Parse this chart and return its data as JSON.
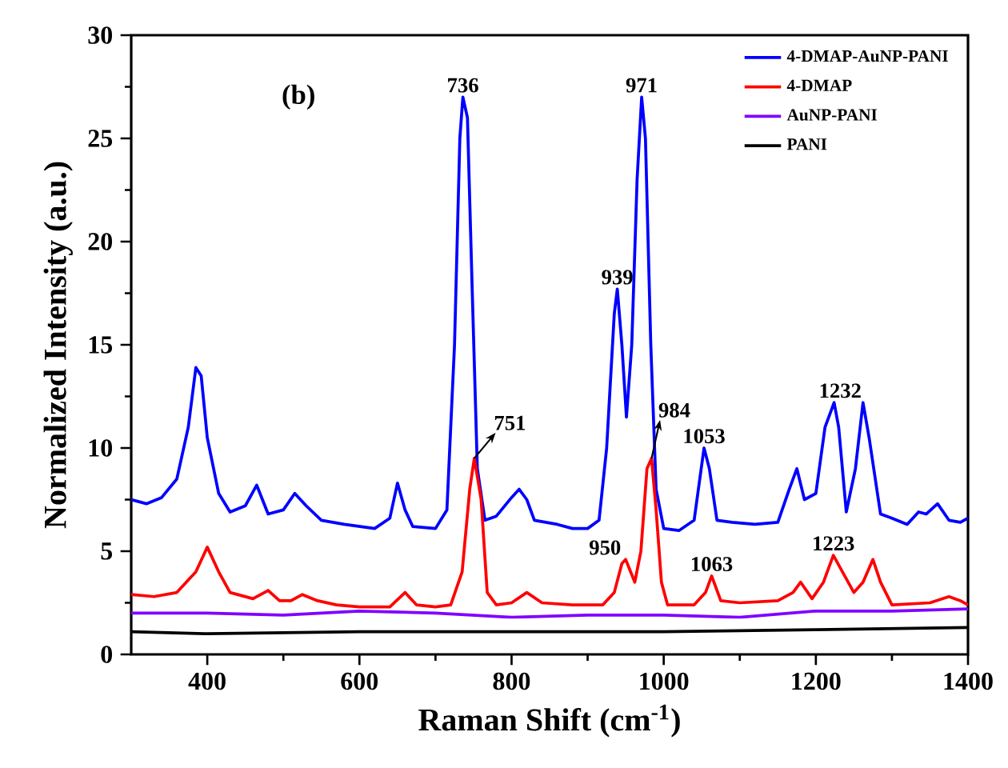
{
  "chart_data": {
    "type": "line",
    "xlabel": "Raman Shift (cm$^{-1}$)",
    "ylabel": "Normalized Intensity (a.u.)",
    "xlim": [
      300,
      1400
    ],
    "xticks": [
      400,
      600,
      800,
      1000,
      1200,
      1400
    ],
    "ylim": [
      0,
      30
    ],
    "yticks": [
      0,
      5,
      10,
      15,
      20,
      25,
      30
    ],
    "grid": false,
    "legend": "top right",
    "marker": "none",
    "line_style": "solid",
    "series": [
      {
        "name": "4-DMAP-AuNP-PANI",
        "color": "#0000ff",
        "x": [
          300,
          320,
          340,
          360,
          375,
          385,
          392,
          400,
          415,
          430,
          450,
          465,
          480,
          500,
          515,
          530,
          550,
          580,
          600,
          620,
          640,
          650,
          660,
          670,
          700,
          715,
          725,
          732,
          736,
          742,
          748,
          755,
          765,
          780,
          800,
          810,
          820,
          830,
          860,
          880,
          900,
          915,
          925,
          935,
          939,
          945,
          951,
          958,
          965,
          971,
          976,
          983,
          990,
          1000,
          1020,
          1040,
          1053,
          1060,
          1070,
          1090,
          1120,
          1150,
          1165,
          1175,
          1185,
          1200,
          1212,
          1224,
          1230,
          1240,
          1252,
          1262,
          1270,
          1285,
          1300,
          1320,
          1335,
          1345,
          1360,
          1375,
          1390,
          1400
        ],
        "values": [
          7.5,
          7.3,
          7.6,
          8.5,
          11,
          13.9,
          13.5,
          10.5,
          7.8,
          6.9,
          7.2,
          8.2,
          6.8,
          7.0,
          7.8,
          7.2,
          6.5,
          6.3,
          6.2,
          6.1,
          6.6,
          8.3,
          7.0,
          6.2,
          6.1,
          7.0,
          15,
          25,
          27,
          26,
          18,
          9,
          6.5,
          6.7,
          7.6,
          8.0,
          7.5,
          6.5,
          6.3,
          6.1,
          6.1,
          6.5,
          10,
          16.5,
          17.7,
          15,
          11.5,
          15,
          23,
          27,
          25,
          15,
          8,
          6.1,
          6.0,
          6.5,
          10,
          9,
          6.5,
          6.4,
          6.3,
          6.4,
          8,
          9,
          7.5,
          7.8,
          11,
          12.2,
          11,
          6.9,
          9,
          12.2,
          10.5,
          6.8,
          6.6,
          6.3,
          6.9,
          6.8,
          7.3,
          6.5,
          6.4,
          6.6
        ]
      },
      {
        "name": "4-DMAP",
        "color": "#ff0000",
        "x": [
          300,
          330,
          360,
          385,
          400,
          415,
          430,
          460,
          480,
          495,
          510,
          525,
          545,
          570,
          600,
          640,
          660,
          675,
          700,
          720,
          735,
          745,
          751,
          760,
          768,
          780,
          800,
          820,
          840,
          880,
          920,
          935,
          945,
          950,
          962,
          970,
          978,
          984,
          990,
          997,
          1005,
          1040,
          1055,
          1063,
          1075,
          1100,
          1150,
          1170,
          1180,
          1195,
          1210,
          1223,
          1235,
          1250,
          1262,
          1275,
          1285,
          1300,
          1350,
          1375,
          1390,
          1400
        ],
        "values": [
          2.9,
          2.8,
          3.0,
          4.0,
          5.2,
          4.0,
          3.0,
          2.7,
          3.1,
          2.6,
          2.6,
          2.9,
          2.6,
          2.4,
          2.3,
          2.3,
          3.0,
          2.4,
          2.3,
          2.4,
          4,
          8,
          9.5,
          7.5,
          3,
          2.4,
          2.5,
          3.0,
          2.5,
          2.4,
          2.4,
          3,
          4.4,
          4.6,
          3.5,
          5,
          9,
          9.5,
          7,
          3.5,
          2.4,
          2.4,
          3.0,
          3.8,
          2.6,
          2.5,
          2.6,
          3.0,
          3.5,
          2.7,
          3.5,
          4.8,
          4.0,
          3.0,
          3.5,
          4.6,
          3.5,
          2.4,
          2.5,
          2.8,
          2.6,
          2.4
        ]
      },
      {
        "name": "AuNP-PANI",
        "color": "#8000ff",
        "x": [
          300,
          400,
          500,
          600,
          700,
          800,
          900,
          1000,
          1100,
          1200,
          1300,
          1400
        ],
        "values": [
          2.0,
          2.0,
          1.9,
          2.1,
          2.0,
          1.8,
          1.9,
          1.9,
          1.8,
          2.1,
          2.1,
          2.2
        ]
      },
      {
        "name": "PANI",
        "color": "#000000",
        "x": [
          300,
          400,
          600,
          800,
          1000,
          1200,
          1400
        ],
        "values": [
          1.1,
          1.0,
          1.1,
          1.1,
          1.1,
          1.2,
          1.3
        ]
      }
    ],
    "annotations": [
      "(b)",
      {
        "text": "736",
        "x": 736,
        "y": 27
      },
      {
        "text": "751",
        "x": 751,
        "y": 9.5
      },
      {
        "text": "939",
        "x": 939,
        "y": 17.7
      },
      {
        "text": "971",
        "x": 971,
        "y": 27
      },
      {
        "text": "984",
        "x": 984,
        "y": 9.5
      },
      {
        "text": "950",
        "x": 950,
        "y": 4.6
      },
      {
        "text": "1053",
        "x": 1053,
        "y": 10
      },
      {
        "text": "1232",
        "x": 1232,
        "y": 12.2
      },
      {
        "text": "1063",
        "x": 1063,
        "y": 3.8
      },
      {
        "text": "1223",
        "x": 1223,
        "y": 4.8
      }
    ]
  }
}
